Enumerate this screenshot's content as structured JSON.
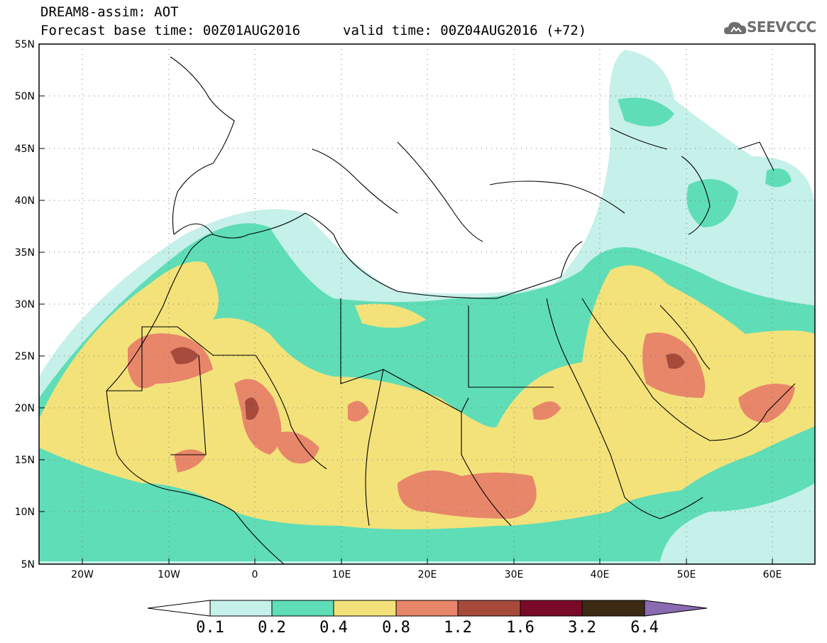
{
  "title": {
    "line1": "DREAM8-assim: AOT",
    "line2": "Forecast base time: 00Z01AUG2016",
    "line3": "valid time: 00Z04AUG2016 (+72)"
  },
  "logo_text": "SEEVCCC",
  "logo_icon": "cloud-icon",
  "axes": {
    "lat_labels": [
      "55N",
      "50N",
      "45N",
      "40N",
      "35N",
      "30N",
      "25N",
      "20N",
      "15N",
      "10N",
      "5N"
    ],
    "lon_labels": [
      "20W",
      "10W",
      "0",
      "10E",
      "20E",
      "30E",
      "40E",
      "50E",
      "60E"
    ]
  },
  "colorbar": {
    "labels": [
      "0.1",
      "0.2",
      "0.4",
      "0.8",
      "1.2",
      "1.6",
      "3.2",
      "6.4"
    ],
    "colors": [
      "#c6f0ea",
      "#5fddb6",
      "#f3e27a",
      "#e8866a",
      "#a64a3c",
      "#7a0a28",
      "#3d2a15",
      "#8a6ab0"
    ]
  }
}
